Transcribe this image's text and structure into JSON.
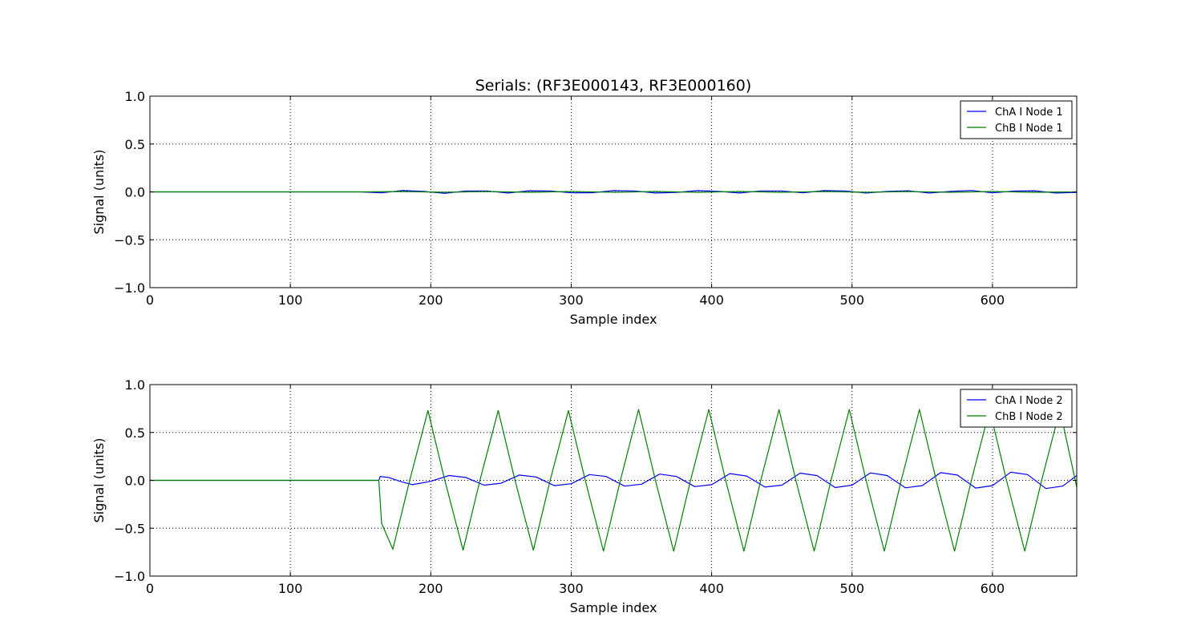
{
  "chart_data": [
    {
      "type": "line",
      "title": "Serials: (RF3E000143, RF3E000160)",
      "xlabel": "Sample index",
      "ylabel": "Signal (units)",
      "xlim": [
        0,
        660
      ],
      "ylim": [
        -1.0,
        1.0
      ],
      "xticks": [
        0,
        100,
        200,
        300,
        400,
        500,
        600
      ],
      "xtick_labels": [
        "0",
        "100",
        "200",
        "300",
        "400",
        "500",
        "600"
      ],
      "yticks": [
        -1.0,
        -0.5,
        0.0,
        0.5,
        1.0
      ],
      "ytick_labels": [
        "−1.0",
        "−0.5",
        "0.0",
        "0.5",
        "1.0"
      ],
      "grid": true,
      "legend_position": "top-right",
      "series": [
        {
          "name": "ChA I Node 1",
          "color": "#0000ff",
          "x": [
            0,
            150,
            165,
            180,
            195,
            210,
            225,
            240,
            255,
            270,
            285,
            300,
            315,
            330,
            345,
            360,
            375,
            390,
            405,
            420,
            435,
            450,
            465,
            480,
            495,
            510,
            525,
            540,
            555,
            570,
            585,
            600,
            615,
            630,
            645,
            660
          ],
          "y": [
            0.0,
            0.0,
            -0.01,
            0.015,
            0.005,
            -0.015,
            0.01,
            0.01,
            -0.012,
            0.012,
            0.01,
            -0.01,
            -0.008,
            0.013,
            0.01,
            -0.012,
            -0.005,
            0.013,
            0.005,
            -0.012,
            0.01,
            0.01,
            -0.01,
            0.013,
            0.01,
            -0.012,
            0.005,
            0.012,
            -0.012,
            0.005,
            0.015,
            -0.01,
            0.008,
            0.012,
            -0.012,
            -0.005
          ]
        },
        {
          "name": "ChB I Node 1",
          "color": "#008000",
          "x": [
            0,
            150,
            180,
            210,
            240,
            270,
            300,
            330,
            360,
            390,
            420,
            450,
            480,
            510,
            540,
            570,
            600,
            630,
            660
          ],
          "y": [
            0.0,
            0.0,
            0.004,
            -0.004,
            0.004,
            -0.004,
            0.004,
            -0.004,
            0.004,
            -0.004,
            0.004,
            -0.004,
            0.004,
            -0.004,
            0.004,
            -0.004,
            0.004,
            -0.004,
            0.0
          ]
        }
      ]
    },
    {
      "type": "line",
      "title": "",
      "xlabel": "Sample index",
      "ylabel": "Signal (units)",
      "xlim": [
        0,
        660
      ],
      "ylim": [
        -1.0,
        1.0
      ],
      "xticks": [
        0,
        100,
        200,
        300,
        400,
        500,
        600
      ],
      "xtick_labels": [
        "0",
        "100",
        "200",
        "300",
        "400",
        "500",
        "600"
      ],
      "yticks": [
        -1.0,
        -0.5,
        0.0,
        0.5,
        1.0
      ],
      "ytick_labels": [
        "−1.0",
        "−0.5",
        "0.0",
        "0.5",
        "1.0"
      ],
      "grid": true,
      "legend_position": "top-right",
      "series": [
        {
          "name": "ChA I Node 2",
          "color": "#0000ff",
          "x": [
            0,
            163,
            164,
            170,
            178,
            187,
            200,
            213,
            225,
            238,
            250,
            263,
            275,
            288,
            300,
            313,
            325,
            338,
            350,
            363,
            375,
            388,
            400,
            413,
            425,
            438,
            450,
            463,
            475,
            488,
            500,
            513,
            525,
            538,
            550,
            563,
            575,
            588,
            600,
            613,
            625,
            638,
            650,
            660
          ],
          "y": [
            0.0,
            0.0,
            0.04,
            0.03,
            -0.01,
            -0.045,
            -0.01,
            0.05,
            0.03,
            -0.05,
            -0.03,
            0.055,
            0.035,
            -0.055,
            -0.035,
            0.06,
            0.04,
            -0.06,
            -0.04,
            0.065,
            0.04,
            -0.065,
            -0.045,
            0.07,
            0.045,
            -0.07,
            -0.05,
            0.075,
            0.05,
            -0.075,
            -0.05,
            0.078,
            0.05,
            -0.078,
            -0.055,
            0.08,
            0.055,
            -0.08,
            -0.055,
            0.085,
            0.06,
            -0.085,
            -0.06,
            0.05
          ]
        },
        {
          "name": "ChB I Node 2",
          "color": "#008000",
          "x": [
            0,
            163,
            165,
            173,
            185,
            198,
            210,
            223,
            235,
            248,
            260,
            273,
            285,
            298,
            310,
            323,
            335,
            348,
            360,
            373,
            385,
            398,
            410,
            423,
            435,
            448,
            460,
            473,
            485,
            498,
            510,
            523,
            535,
            548,
            560,
            573,
            585,
            598,
            610,
            623,
            635,
            648,
            660
          ],
          "y": [
            0.0,
            0.0,
            -0.45,
            -0.72,
            0.0,
            0.73,
            0.0,
            -0.73,
            0.0,
            0.73,
            0.0,
            -0.73,
            0.0,
            0.73,
            0.0,
            -0.74,
            0.0,
            0.74,
            0.0,
            -0.74,
            0.0,
            0.74,
            0.0,
            -0.74,
            0.0,
            0.74,
            0.0,
            -0.74,
            0.0,
            0.74,
            0.0,
            -0.74,
            0.0,
            0.74,
            0.0,
            -0.74,
            0.0,
            0.74,
            0.0,
            -0.74,
            0.0,
            0.74,
            -0.07
          ]
        }
      ]
    }
  ]
}
